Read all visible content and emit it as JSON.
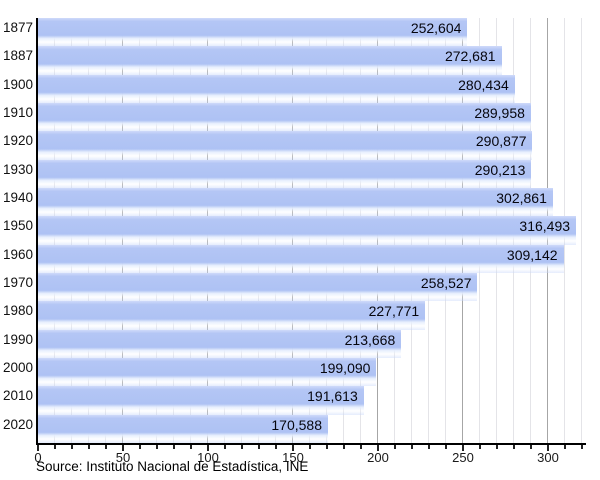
{
  "chart_data": {
    "type": "bar",
    "orientation": "horizontal",
    "title": "",
    "xlabel": "",
    "ylabel": "",
    "categories": [
      "1877",
      "1887",
      "1900",
      "1910",
      "1920",
      "1930",
      "1940",
      "1950",
      "1960",
      "1970",
      "1980",
      "1990",
      "2000",
      "2010",
      "2020"
    ],
    "values": [
      252604,
      272681,
      280434,
      289958,
      290877,
      290213,
      302861,
      316493,
      309142,
      258527,
      227771,
      213668,
      199090,
      191613,
      170588
    ],
    "value_labels": [
      "252,604",
      "272,681",
      "280,434",
      "289,958",
      "290,877",
      "290,213",
      "302,861",
      "316,493",
      "309,142",
      "258,527",
      "227,771",
      "213,668",
      "199,090",
      "191,613",
      "170,588"
    ],
    "xlim": [
      0,
      320000
    ],
    "x_major_tick_interval": 50000,
    "x_minor_tick_interval": 10000,
    "x_tick_labels": [
      "0",
      "50",
      "100",
      "150",
      "200",
      "250",
      "300"
    ],
    "grid": "on",
    "legend": "none",
    "source": "Source: Instituto Nacional de Estadística, INE",
    "colors": {
      "bar_main": "#aec2f4",
      "bar_highlight": "#cfdafa",
      "bar_solid": "#b4c6f5",
      "grid_minor": "#e4e4e8",
      "grid_major": "#a6a6a6",
      "axis": "#000000",
      "value_text": "#06060e",
      "tick_text": "#1a1a1a"
    }
  }
}
